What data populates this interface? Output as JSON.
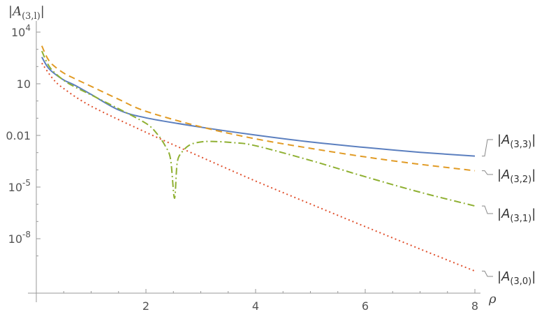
{
  "chart_data": {
    "type": "line",
    "title": "",
    "ylabel": "|A(3,l)|",
    "xlabel": "ρ",
    "xlim": [
      0,
      8
    ],
    "ylim_log10": [
      -10,
      4.3
    ],
    "y_scale": "log",
    "grid": false,
    "legend_placement": "right, end of each curve",
    "x_ticks": [
      2,
      4,
      6,
      8
    ],
    "x_tick_labels": [
      "2",
      "4",
      "6",
      "8"
    ],
    "y_ticks": [
      {
        "label": "10",
        "sup": "4",
        "log10": 4
      },
      {
        "label": "10",
        "sup": "",
        "log10": 1
      },
      {
        "label": "0.01",
        "sup": "",
        "log10": -2
      },
      {
        "label": "10",
        "sup": "-5",
        "log10": -5
      },
      {
        "label": "10",
        "sup": "-8",
        "log10": -8
      }
    ],
    "series": [
      {
        "name": "|A(3,3)|",
        "label_main": "|A",
        "label_sub": "(3,3)",
        "label_end": "|",
        "color": "#5b7fbf",
        "dash": "",
        "x": [
          0.1,
          0.2,
          0.3,
          0.5,
          0.7,
          1.0,
          1.5,
          2.0,
          3.0,
          4.0,
          5.0,
          6.0,
          7.0,
          8.0
        ],
        "log10": [
          2.55,
          2.0,
          1.67,
          1.22,
          0.92,
          0.38,
          -0.52,
          -0.98,
          -1.52,
          -1.98,
          -2.38,
          -2.7,
          -2.98,
          -3.2
        ]
      },
      {
        "name": "|A(3,2)|",
        "label_main": "|A",
        "label_sub": "(3,2)",
        "label_end": "|",
        "color": "#e19b25",
        "dash": "9,6",
        "x": [
          0.1,
          0.2,
          0.3,
          0.5,
          0.7,
          1.0,
          1.5,
          2.0,
          3.0,
          4.0,
          5.0,
          6.0,
          7.0,
          8.0
        ],
        "log10": [
          3.2,
          2.5,
          2.1,
          1.62,
          1.3,
          0.85,
          0.1,
          -0.6,
          -1.5,
          -2.2,
          -2.75,
          -3.25,
          -3.68,
          -4.05
        ]
      },
      {
        "name": "|A(3,1)|",
        "label_main": "|A",
        "label_sub": "(3,1)",
        "label_end": "|",
        "color": "#8fb032",
        "dash": "10,4,2,4",
        "x": [
          0.1,
          0.2,
          0.3,
          0.5,
          0.7,
          1.0,
          1.5,
          2.0,
          2.2,
          2.35,
          2.45,
          2.52,
          2.57,
          2.65,
          2.8,
          3.0,
          3.2,
          3.6,
          4.0,
          5.0,
          6.0,
          7.0,
          8.0
        ],
        "log10": [
          2.9,
          2.2,
          1.75,
          1.2,
          0.82,
          0.35,
          -0.45,
          -1.3,
          -1.9,
          -2.6,
          -3.4,
          -5.65,
          -3.6,
          -3.0,
          -2.55,
          -2.38,
          -2.35,
          -2.42,
          -2.6,
          -3.45,
          -4.4,
          -5.3,
          -6.1
        ]
      },
      {
        "name": "|A(3,0)|",
        "label_main": "|A",
        "label_sub": "(3,0)",
        "label_end": "|",
        "color": "#e0512e",
        "dash": "2,4",
        "x": [
          0.1,
          0.3,
          0.5,
          1.0,
          2.0,
          3.0,
          4.0,
          5.0,
          6.0,
          7.0,
          8.0
        ],
        "log10": [
          2.2,
          1.3,
          0.72,
          -0.3,
          -1.82,
          -3.25,
          -4.65,
          -5.98,
          -7.3,
          -8.6,
          -9.88
        ]
      }
    ]
  }
}
